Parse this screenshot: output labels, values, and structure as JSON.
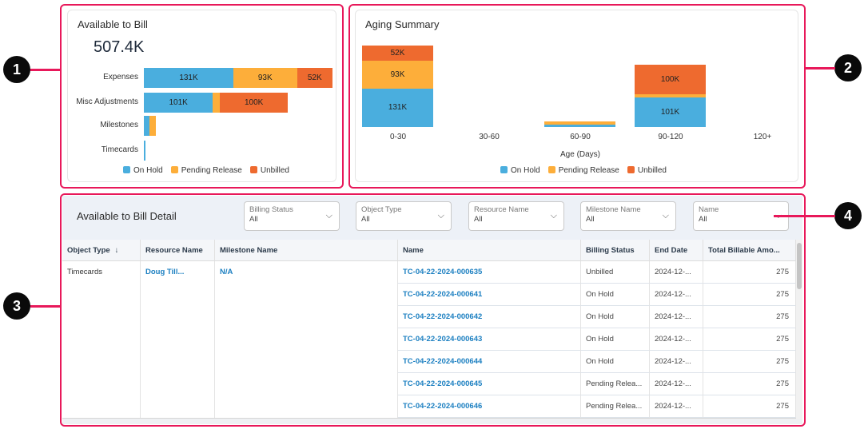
{
  "colors": {
    "on_hold": "#4aaede",
    "pending_release": "#fdae3a",
    "unbilled": "#ee6a2f",
    "callout": "#e8185a"
  },
  "callouts": [
    "1",
    "2",
    "3",
    "4"
  ],
  "available_to_bill": {
    "title": "Available to Bill",
    "total": "507.4K",
    "chart_data": {
      "type": "bar",
      "orientation": "horizontal",
      "stacked": true,
      "categories": [
        "Expenses",
        "Misc Adjustments",
        "Milestones",
        "Timecards"
      ],
      "series": [
        {
          "name": "On Hold",
          "values": [
            131,
            101,
            8,
            2.4
          ],
          "labels": [
            "131K",
            "101K",
            "",
            ""
          ]
        },
        {
          "name": "Pending Release",
          "values": [
            93,
            10,
            10,
            0
          ],
          "labels": [
            "93K",
            "",
            "",
            ""
          ]
        },
        {
          "name": "Unbilled",
          "values": [
            52,
            100,
            0,
            0
          ],
          "labels": [
            "52K",
            "100K",
            "",
            ""
          ]
        }
      ],
      "unit": "K",
      "legend": "bottom"
    }
  },
  "aging_summary": {
    "title": "Aging Summary",
    "chart_data": {
      "type": "bar",
      "stacked": true,
      "categories": [
        "0-30",
        "30-60",
        "60-90",
        "90-120",
        "120+"
      ],
      "xlabel": "Age (Days)",
      "series": [
        {
          "name": "On Hold",
          "values": [
            131,
            0,
            8,
            101,
            0
          ],
          "labels": [
            "131K",
            "",
            "",
            "101K",
            ""
          ]
        },
        {
          "name": "Pending Release",
          "values": [
            93,
            0,
            10,
            10,
            0
          ],
          "labels": [
            "93K",
            "",
            "",
            "",
            ""
          ]
        },
        {
          "name": "Unbilled",
          "values": [
            52,
            0,
            0,
            100,
            0
          ],
          "labels": [
            "52K",
            "",
            "",
            "100K",
            ""
          ]
        }
      ],
      "unit": "K",
      "legend": "bottom"
    }
  },
  "detail": {
    "title": "Available to Bill Detail",
    "filters": [
      {
        "label": "Billing Status",
        "value": "All"
      },
      {
        "label": "Object Type",
        "value": "All"
      },
      {
        "label": "Resource Name",
        "value": "All"
      },
      {
        "label": "Milestone Name",
        "value": "All"
      },
      {
        "label": "Name",
        "value": "All"
      }
    ],
    "columns": [
      "Object Type",
      "Resource Name",
      "Milestone Name",
      "Name",
      "Billing Status",
      "End Date",
      "Total Billable Amo..."
    ],
    "sort_icon": "↓",
    "group": {
      "object_type": "Timecards",
      "resource_name": "Doug Till...",
      "milestone_name": "N/A"
    },
    "rows": [
      {
        "name": "TC-04-22-2024-000635",
        "status": "Unbilled",
        "end_date": "2024-12-...",
        "total": "275"
      },
      {
        "name": "TC-04-22-2024-000641",
        "status": "On Hold",
        "end_date": "2024-12-...",
        "total": "275"
      },
      {
        "name": "TC-04-22-2024-000642",
        "status": "On Hold",
        "end_date": "2024-12-...",
        "total": "275"
      },
      {
        "name": "TC-04-22-2024-000643",
        "status": "On Hold",
        "end_date": "2024-12-...",
        "total": "275"
      },
      {
        "name": "TC-04-22-2024-000644",
        "status": "On Hold",
        "end_date": "2024-12-...",
        "total": "275"
      },
      {
        "name": "TC-04-22-2024-000645",
        "status": "Pending Relea...",
        "end_date": "2024-12-...",
        "total": "275"
      },
      {
        "name": "TC-04-22-2024-000646",
        "status": "Pending Relea...",
        "end_date": "2024-12-...",
        "total": "275"
      }
    ]
  }
}
